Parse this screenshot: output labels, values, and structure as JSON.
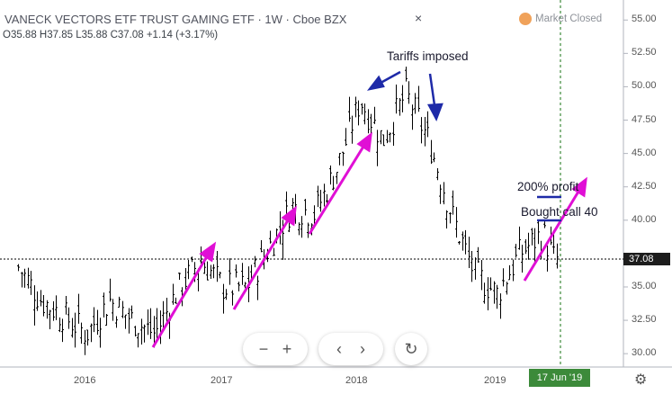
{
  "header": {
    "title": "VANECK VECTORS ETF TRUST GAMING ETF · 1W · Cboe BZX",
    "close_icon": "×",
    "ohlc": "O35.88  H37.85  L35.88  C37.08  +1.14 (+3.17%)",
    "market_status": "Market Closed"
  },
  "annotations": {
    "tariffs": "Tariffs imposed",
    "profit": "200% profit",
    "bought": "Bought call 40"
  },
  "badges": {
    "last_price": "37.08",
    "date": "17 Jun '19"
  },
  "controls": {
    "zoom_out": "−",
    "zoom_in": "+",
    "scroll_left": "‹",
    "scroll_right": "›",
    "reset": "↻",
    "settings": "⚙"
  },
  "colors": {
    "arrow_magenta": "#e00fd5",
    "arrow_navy": "#1e2aa8",
    "bars": "#000000",
    "price_line": "#000000",
    "date_line": "#3c8a3a"
  },
  "chart_data": {
    "type": "ohlc",
    "title": "VANECK VECTORS ETF TRUST GAMING ETF",
    "x_ticks": [
      "2016",
      "2017",
      "2018",
      "2019"
    ],
    "y_ticks": [
      55.0,
      52.5,
      50.0,
      47.5,
      45.0,
      42.5,
      40.0,
      37.5,
      35.0,
      32.5,
      30.0
    ],
    "ylim": [
      29.0,
      56.5
    ],
    "last_price": 37.08,
    "highlighted_date": "17 Jun '19",
    "series": [
      {
        "date": "2015-07",
        "close": 36.5
      },
      {
        "date": "2015-09",
        "close": 34.0
      },
      {
        "date": "2015-11",
        "close": 32.8
      },
      {
        "date": "2016-01",
        "close": 31.5
      },
      {
        "date": "2016-03",
        "close": 34.0
      },
      {
        "date": "2016-05",
        "close": 32.5
      },
      {
        "date": "2016-07",
        "close": 31.5
      },
      {
        "date": "2016-09",
        "close": 34.8
      },
      {
        "date": "2016-11",
        "close": 37.0
      },
      {
        "date": "2017-01",
        "close": 35.0
      },
      {
        "date": "2017-03",
        "close": 35.0
      },
      {
        "date": "2017-05",
        "close": 38.0
      },
      {
        "date": "2017-07",
        "close": 41.0
      },
      {
        "date": "2017-09",
        "close": 40.5
      },
      {
        "date": "2017-11",
        "close": 44.0
      },
      {
        "date": "2018-01",
        "close": 49.0
      },
      {
        "date": "2018-03",
        "close": 46.0
      },
      {
        "date": "2018-05",
        "close": 49.5
      },
      {
        "date": "2018-07",
        "close": 46.0
      },
      {
        "date": "2018-09",
        "close": 40.5
      },
      {
        "date": "2018-11",
        "close": 36.0
      },
      {
        "date": "2019-01",
        "close": 34.5
      },
      {
        "date": "2019-03",
        "close": 37.5
      },
      {
        "date": "2019-05",
        "close": 39.0
      },
      {
        "date": "2019-06",
        "close": 37.08
      }
    ]
  }
}
